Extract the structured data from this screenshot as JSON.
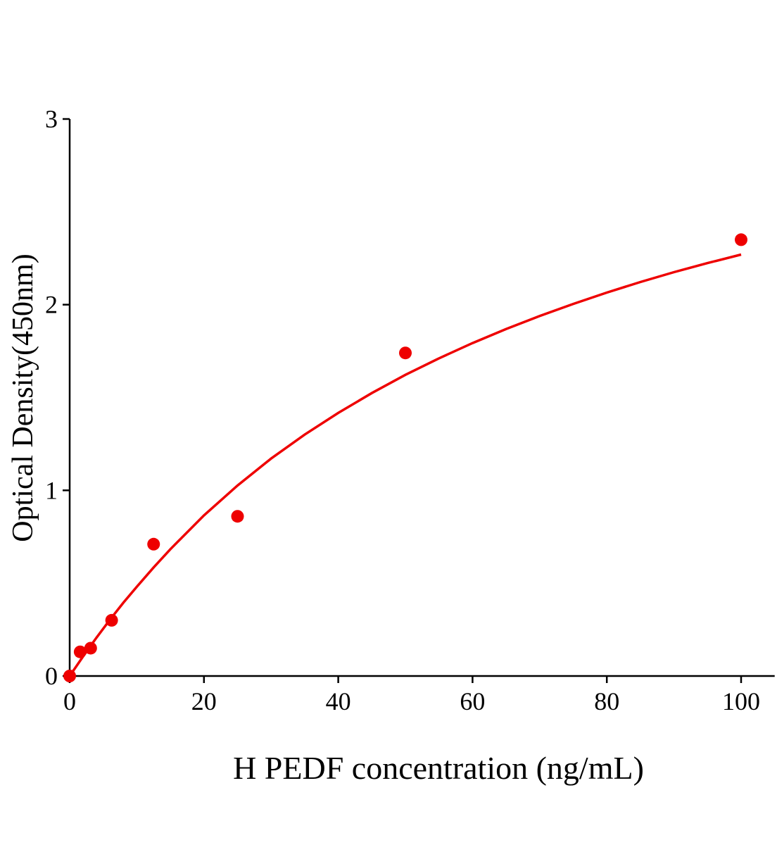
{
  "chart_data": {
    "type": "scatter",
    "title": "",
    "xlabel": "H PEDF concentration (ng/mL)",
    "ylabel": "Optical Density(450nm)",
    "xlim": [
      0,
      105
    ],
    "ylim": [
      0,
      3
    ],
    "xticks": [
      0,
      20,
      40,
      60,
      80,
      100
    ],
    "yticks": [
      0,
      1,
      2,
      3
    ],
    "grid": false,
    "color": "#ee0000",
    "points": {
      "x": [
        0,
        1.56,
        3.125,
        6.25,
        12.5,
        25,
        50,
        100
      ],
      "y": [
        0.0,
        0.13,
        0.15,
        0.3,
        0.71,
        0.86,
        1.74,
        2.35
      ]
    },
    "fit_curve": {
      "x": [
        0,
        2,
        4,
        6,
        8,
        10,
        12.5,
        15,
        20,
        25,
        30,
        35,
        40,
        45,
        50,
        55,
        60,
        65,
        70,
        75,
        80,
        85,
        90,
        95,
        100
      ],
      "y": [
        0,
        0.106,
        0.207,
        0.303,
        0.395,
        0.481,
        0.585,
        0.683,
        0.865,
        1.026,
        1.171,
        1.3,
        1.417,
        1.524,
        1.622,
        1.711,
        1.793,
        1.869,
        1.939,
        2.004,
        2.065,
        2.122,
        2.175,
        2.224,
        2.27
      ]
    }
  }
}
